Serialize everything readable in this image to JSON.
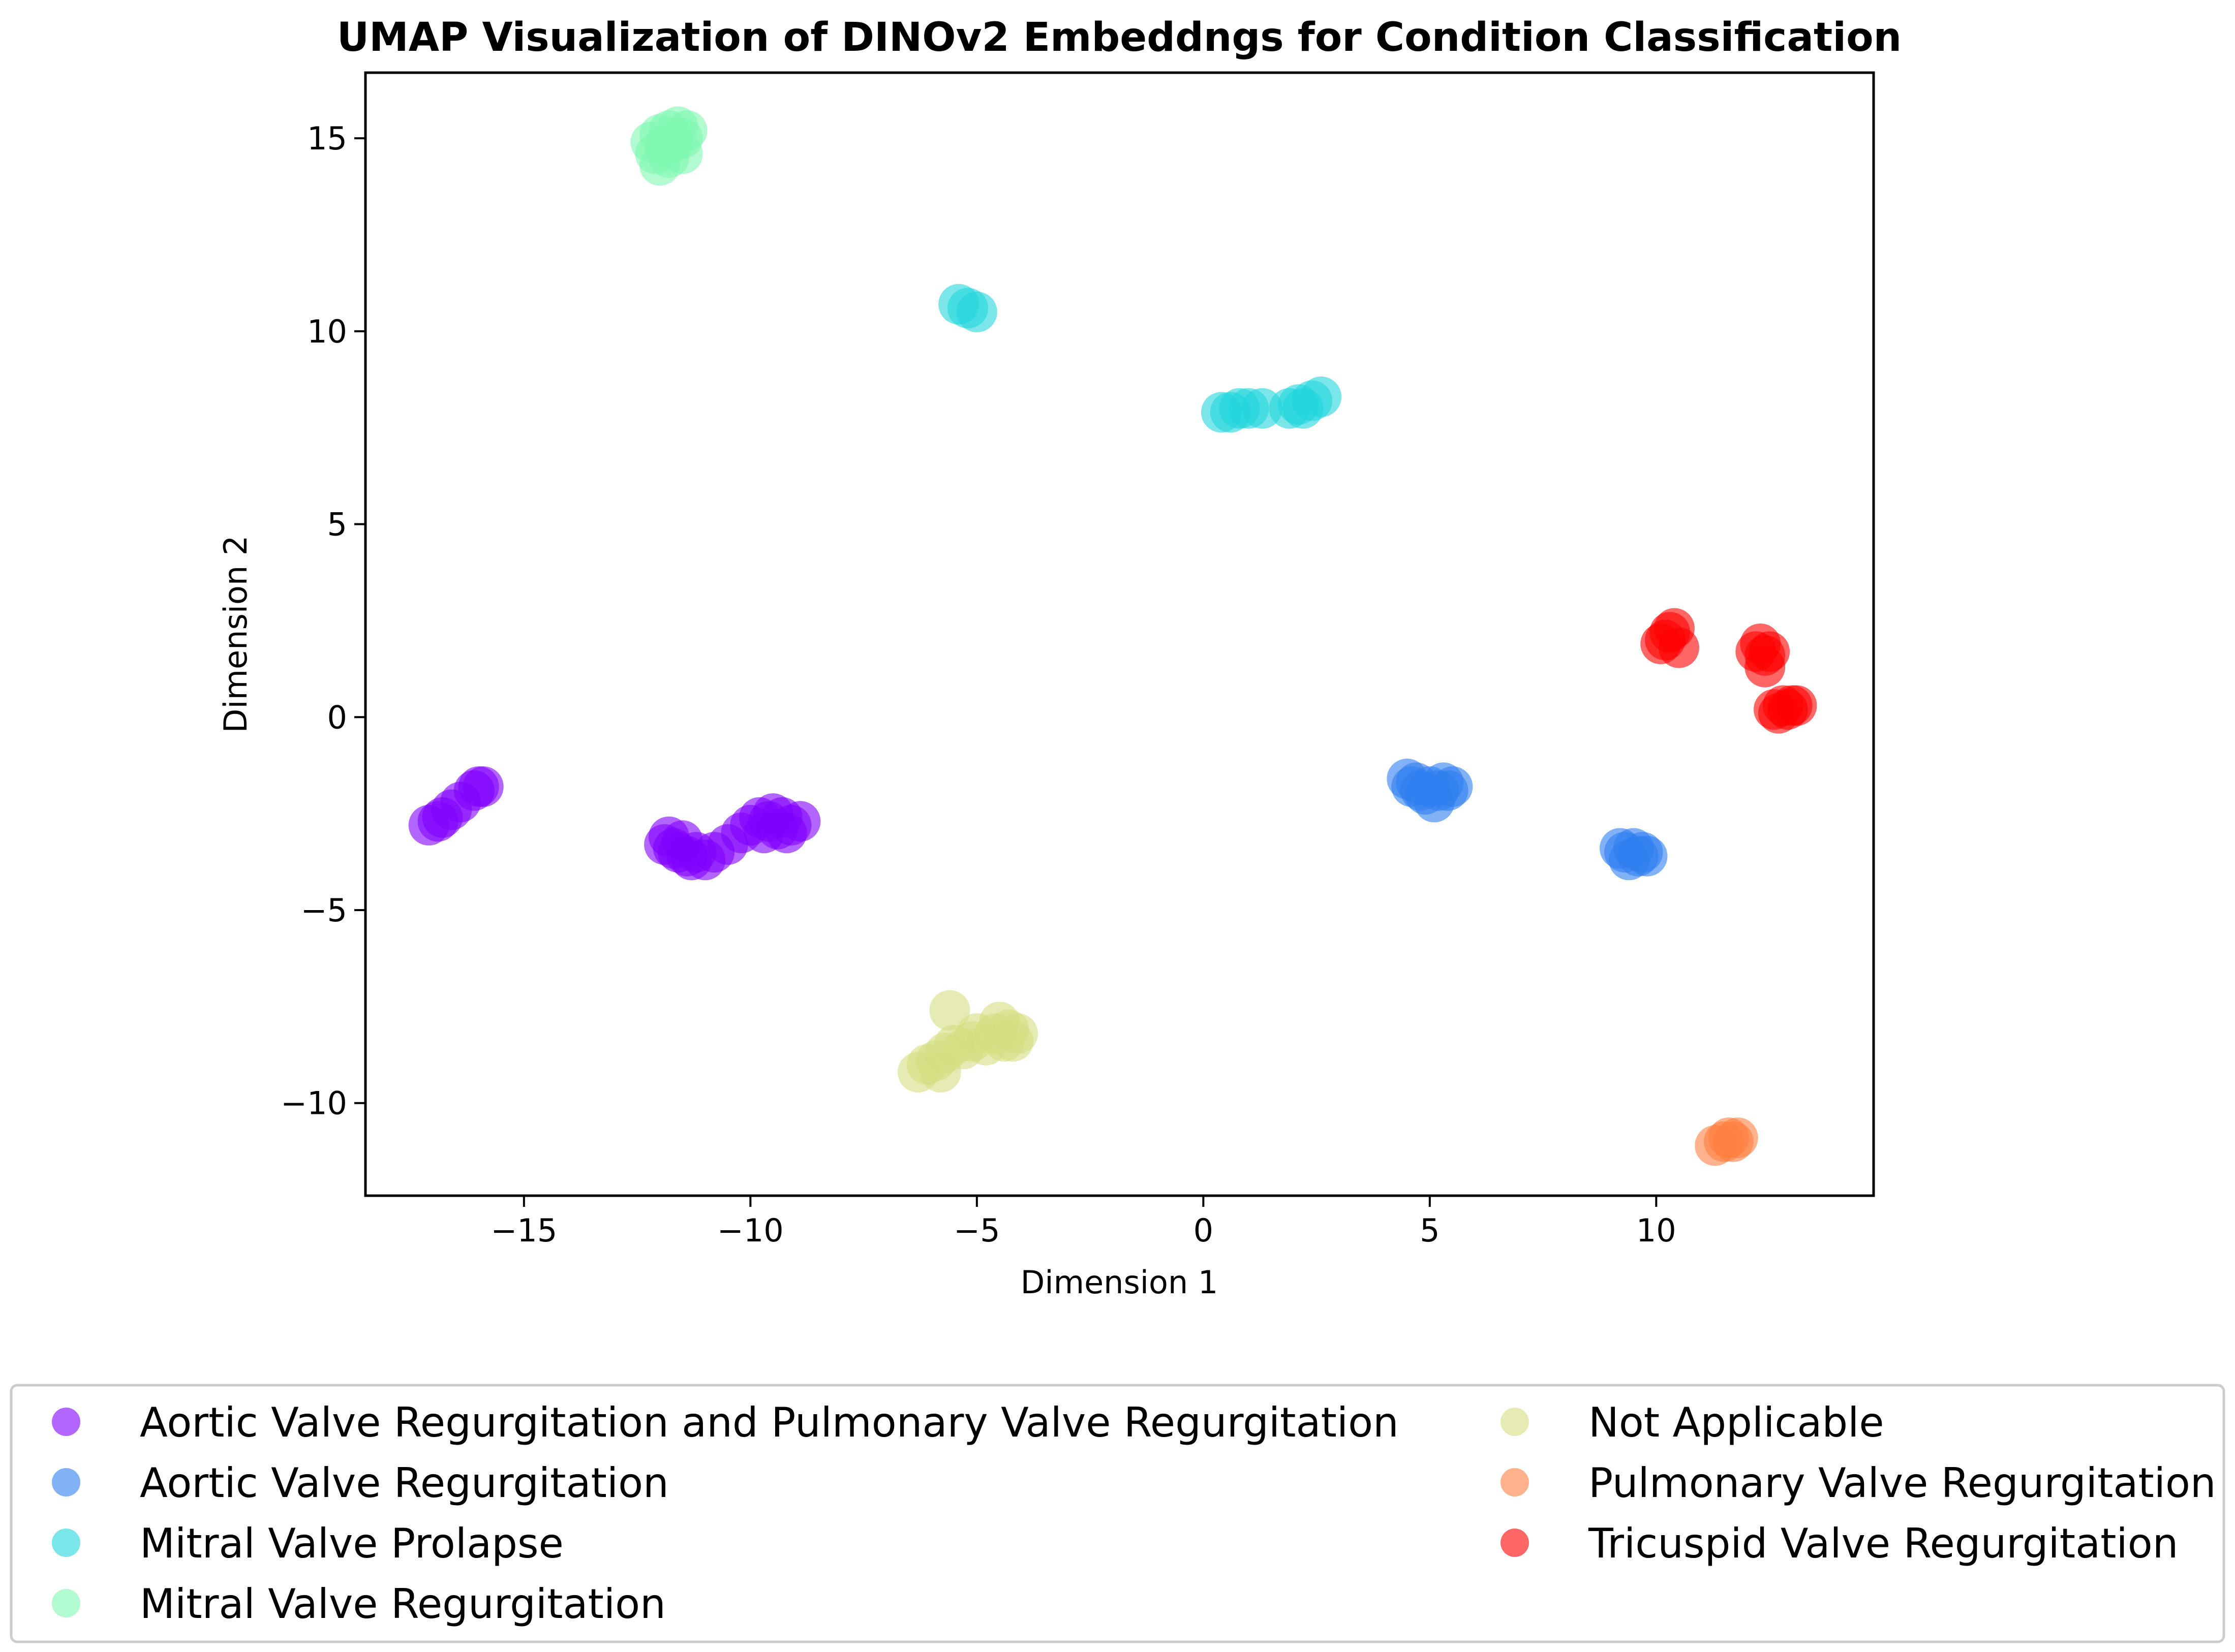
{
  "chart_data": {
    "type": "scatter",
    "title": "UMAP Visualization of DINOv2 Embeddngs for Condition Classification",
    "xlabel": "Dimension 1",
    "ylabel": "Dimension 2",
    "xlim": [
      -18.5,
      14.8
    ],
    "ylim": [
      -12.4,
      16.7
    ],
    "xticks": [
      -15,
      -10,
      -5,
      0,
      5,
      10
    ],
    "yticks": [
      -10,
      -5,
      0,
      5,
      10,
      15
    ],
    "xtick_labels": [
      "−15",
      "−10",
      "−5",
      "0",
      "5",
      "10"
    ],
    "ytick_labels": [
      "−10",
      "−5",
      "0",
      "5",
      "10",
      "15"
    ],
    "grid": false,
    "legend_position": "bottom",
    "point_alpha": 0.6,
    "series": [
      {
        "name": "Aortic Valve Regurgitation and Pulmonary Valve Regurgitation",
        "color": "#8000ff",
        "points": [
          [
            -17.1,
            -2.8
          ],
          [
            -16.9,
            -2.7
          ],
          [
            -16.8,
            -2.6
          ],
          [
            -16.6,
            -2.4
          ],
          [
            -16.4,
            -2.2
          ],
          [
            -16.1,
            -1.9
          ],
          [
            -16.0,
            -1.8
          ],
          [
            -15.9,
            -1.8
          ],
          [
            -11.9,
            -3.3
          ],
          [
            -11.8,
            -3.1
          ],
          [
            -11.7,
            -3.4
          ],
          [
            -11.6,
            -3.5
          ],
          [
            -11.5,
            -3.2
          ],
          [
            -11.4,
            -3.6
          ],
          [
            -11.3,
            -3.7
          ],
          [
            -11.2,
            -3.5
          ],
          [
            -11.0,
            -3.7
          ],
          [
            -10.8,
            -3.5
          ],
          [
            -10.5,
            -3.3
          ],
          [
            -10.2,
            -3.0
          ],
          [
            -10.0,
            -2.8
          ],
          [
            -9.8,
            -2.6
          ],
          [
            -9.7,
            -3.0
          ],
          [
            -9.6,
            -2.7
          ],
          [
            -9.5,
            -2.5
          ],
          [
            -9.4,
            -2.9
          ],
          [
            -9.3,
            -2.6
          ],
          [
            -9.2,
            -3.0
          ],
          [
            -9.1,
            -2.8
          ],
          [
            -8.9,
            -2.7
          ]
        ]
      },
      {
        "name": "Aortic Valve Regurgitation",
        "color": "#2f7ef0",
        "points": [
          [
            4.5,
            -1.6
          ],
          [
            4.6,
            -1.8
          ],
          [
            4.7,
            -1.7
          ],
          [
            4.8,
            -1.9
          ],
          [
            4.9,
            -2.0
          ],
          [
            5.0,
            -1.8
          ],
          [
            5.1,
            -2.2
          ],
          [
            5.2,
            -1.9
          ],
          [
            5.3,
            -1.7
          ],
          [
            5.4,
            -1.9
          ],
          [
            5.5,
            -1.8
          ],
          [
            9.2,
            -3.4
          ],
          [
            9.3,
            -3.5
          ],
          [
            9.4,
            -3.7
          ],
          [
            9.5,
            -3.4
          ],
          [
            9.6,
            -3.6
          ],
          [
            9.7,
            -3.5
          ],
          [
            9.8,
            -3.6
          ]
        ]
      },
      {
        "name": "Mitral Valve Prolapse",
        "color": "#22d6dc",
        "points": [
          [
            -5.4,
            10.7
          ],
          [
            -5.2,
            10.6
          ],
          [
            -5.0,
            10.5
          ],
          [
            0.4,
            7.9
          ],
          [
            0.6,
            7.9
          ],
          [
            0.8,
            8.0
          ],
          [
            1.0,
            8.0
          ],
          [
            1.3,
            8.0
          ],
          [
            1.9,
            8.0
          ],
          [
            2.1,
            8.1
          ],
          [
            2.2,
            8.0
          ],
          [
            2.4,
            8.2
          ],
          [
            2.6,
            8.3
          ]
        ]
      },
      {
        "name": "Mitral Valve Regurgitation",
        "color": "#7ef8b0",
        "points": [
          [
            -12.2,
            14.9
          ],
          [
            -12.1,
            14.6
          ],
          [
            -12.0,
            15.1
          ],
          [
            -12.0,
            14.3
          ],
          [
            -11.9,
            14.8
          ],
          [
            -11.8,
            14.5
          ],
          [
            -11.8,
            15.2
          ],
          [
            -11.7,
            14.9
          ],
          [
            -11.6,
            15.3
          ],
          [
            -11.5,
            15.0
          ],
          [
            -11.5,
            14.6
          ],
          [
            -11.4,
            15.2
          ]
        ]
      },
      {
        "name": "Not Applicable",
        "color": "#d4dd80",
        "points": [
          [
            -6.3,
            -9.2
          ],
          [
            -6.1,
            -9.0
          ],
          [
            -5.9,
            -8.9
          ],
          [
            -5.8,
            -9.2
          ],
          [
            -5.7,
            -8.7
          ],
          [
            -5.6,
            -7.6
          ],
          [
            -5.5,
            -8.5
          ],
          [
            -5.3,
            -8.6
          ],
          [
            -5.1,
            -8.4
          ],
          [
            -5.0,
            -8.2
          ],
          [
            -4.8,
            -8.5
          ],
          [
            -4.6,
            -8.2
          ],
          [
            -4.5,
            -7.9
          ],
          [
            -4.4,
            -8.4
          ],
          [
            -4.3,
            -8.1
          ],
          [
            -4.2,
            -8.4
          ],
          [
            -4.1,
            -8.2
          ]
        ]
      },
      {
        "name": "Pulmonary Valve Regurgitation",
        "color": "#ff7e40",
        "points": [
          [
            11.3,
            -11.1
          ],
          [
            11.5,
            -11.0
          ],
          [
            11.6,
            -10.9
          ],
          [
            11.7,
            -11.0
          ],
          [
            11.8,
            -10.9
          ]
        ]
      },
      {
        "name": "Tricuspid Valve Regurgitation",
        "color": "#ff0000",
        "points": [
          [
            10.1,
            1.9
          ],
          [
            10.2,
            2.0
          ],
          [
            10.3,
            2.2
          ],
          [
            10.4,
            2.3
          ],
          [
            10.5,
            1.8
          ],
          [
            12.2,
            1.7
          ],
          [
            12.3,
            1.9
          ],
          [
            12.4,
            1.6
          ],
          [
            12.4,
            1.3
          ],
          [
            12.5,
            1.7
          ],
          [
            12.6,
            0.2
          ],
          [
            12.7,
            0.1
          ],
          [
            12.8,
            0.3
          ],
          [
            12.9,
            0.2
          ],
          [
            13.0,
            0.3
          ],
          [
            13.1,
            0.3
          ]
        ]
      }
    ]
  }
}
